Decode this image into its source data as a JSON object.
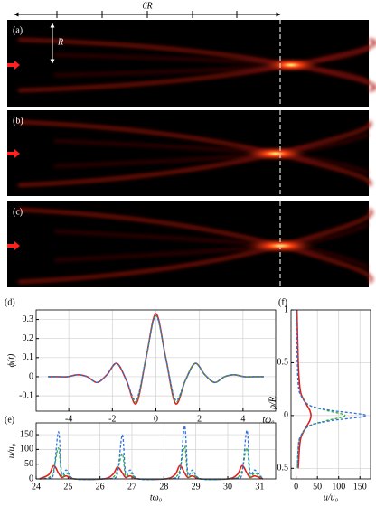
{
  "figure": {
    "panels": [
      "(a)",
      "(b)",
      "(c)"
    ],
    "length_label": "6R",
    "height_label": "R"
  },
  "chart_data": [
    {
      "type": "line",
      "panel": "(d)",
      "ylabel": "ϕ(t)",
      "xlabel": "tω₀",
      "grid": true,
      "x": [
        -4.95,
        -4.5,
        -4.05,
        -3.6,
        -3.15,
        -2.7,
        -2.25,
        -1.8,
        -1.35,
        -0.9,
        -0.45,
        0,
        0.45,
        0.9,
        1.35,
        1.8,
        2.25,
        2.7,
        3.15,
        3.6,
        4.05,
        4.5,
        4.95
      ],
      "xlim": [
        -5.5,
        5.5
      ],
      "xticks": [
        -4,
        -2,
        0,
        2,
        4
      ],
      "ylim": [
        -0.18,
        0.35
      ],
      "yticks": [
        -0.1,
        0,
        0.1,
        0.2,
        0.3
      ],
      "series": [
        {
          "color": "#e02020",
          "dash": false,
          "values": [
            0,
            0,
            0,
            0.01,
            0,
            -0.03,
            0.01,
            0.07,
            -0.02,
            -0.14,
            0.1,
            0.33,
            0.1,
            -0.14,
            -0.02,
            0.07,
            0.01,
            -0.03,
            0,
            0.01,
            0,
            0,
            0
          ]
        },
        {
          "color": "#30b030",
          "dash": true,
          "values": [
            0,
            0,
            0,
            0.01,
            0,
            -0.03,
            0.01,
            0.07,
            -0.02,
            -0.13,
            0.1,
            0.32,
            0.1,
            -0.13,
            -0.02,
            0.07,
            0.01,
            -0.03,
            0,
            0.01,
            0,
            0,
            0
          ]
        },
        {
          "color": "#3070e0",
          "dash": true,
          "values": [
            0,
            0,
            0,
            0.01,
            0,
            -0.03,
            0.01,
            0.07,
            -0.02,
            -0.12,
            0.1,
            0.32,
            0.1,
            -0.12,
            -0.02,
            0.07,
            0.01,
            -0.03,
            0,
            0.01,
            0,
            0,
            0
          ]
        }
      ]
    },
    {
      "type": "line",
      "panel": "(e)",
      "ylabel": "u/u₀",
      "xlabel": "tω₀",
      "grid": true,
      "x": [
        24.1,
        24.4,
        24.55,
        24.7,
        24.8,
        24.95,
        25.2,
        26.1,
        26.4,
        26.55,
        26.7,
        26.8,
        26.95,
        27.2,
        28.05,
        28.35,
        28.5,
        28.65,
        28.75,
        28.9,
        29.15,
        30.0,
        30.3,
        30.45,
        30.6,
        30.7,
        30.85,
        31.1
      ],
      "xlim": [
        24,
        31.5
      ],
      "xticks": [
        24,
        25,
        26,
        27,
        28,
        29,
        30,
        31
      ],
      "ylim": [
        0,
        190
      ],
      "yticks": [
        0,
        50,
        100,
        150
      ],
      "series": [
        {
          "color": "#e02020",
          "dash": false,
          "values": [
            0,
            15,
            45,
            20,
            5,
            10,
            0,
            0,
            15,
            40,
            20,
            5,
            10,
            0,
            0,
            15,
            45,
            20,
            5,
            10,
            0,
            0,
            15,
            45,
            20,
            5,
            10,
            0
          ]
        },
        {
          "color": "#30b030",
          "dash": true,
          "values": [
            0,
            5,
            30,
            105,
            10,
            20,
            0,
            0,
            5,
            30,
            85,
            10,
            20,
            0,
            0,
            5,
            30,
            110,
            10,
            20,
            0,
            0,
            5,
            30,
            105,
            10,
            20,
            0
          ]
        },
        {
          "color": "#3070e0",
          "dash": true,
          "values": [
            0,
            3,
            20,
            160,
            20,
            30,
            0,
            0,
            3,
            20,
            150,
            20,
            30,
            0,
            0,
            3,
            20,
            180,
            20,
            30,
            0,
            0,
            3,
            20,
            165,
            20,
            30,
            0
          ]
        }
      ]
    },
    {
      "type": "line",
      "orientation": "horizontal",
      "panel": "(f)",
      "ylabel": "ρ/R",
      "xlabel": "u/u₀",
      "grid": true,
      "yaxis_inverted": true,
      "x": [
        -1,
        -0.5,
        -0.3,
        -0.2,
        -0.1,
        -0.05,
        0,
        0.05,
        0.1,
        0.2,
        0.3,
        0.5
      ],
      "ylim": [
        -1,
        0.6
      ],
      "yticks": [
        {
          "value": -1,
          "label": "1"
        },
        {
          "value": -0.5,
          "label": "0.5"
        },
        0,
        {
          "value": 0.5,
          "label": "0.5"
        }
      ],
      "xlim": [
        -12,
        175
      ],
      "xticks": [
        0,
        50,
        100,
        150
      ],
      "series": [
        {
          "color": "#e02020",
          "dash": false,
          "values": [
            2,
            5,
            8,
            12,
            25,
            32,
            35,
            32,
            25,
            12,
            8,
            5
          ]
        },
        {
          "color": "#30b030",
          "dash": true,
          "values": [
            0,
            3,
            5,
            10,
            30,
            70,
            115,
            70,
            30,
            10,
            5,
            3
          ]
        },
        {
          "color": "#3070e0",
          "dash": true,
          "values": [
            0,
            3,
            5,
            10,
            30,
            80,
            165,
            80,
            30,
            10,
            5,
            3
          ]
        }
      ]
    }
  ]
}
